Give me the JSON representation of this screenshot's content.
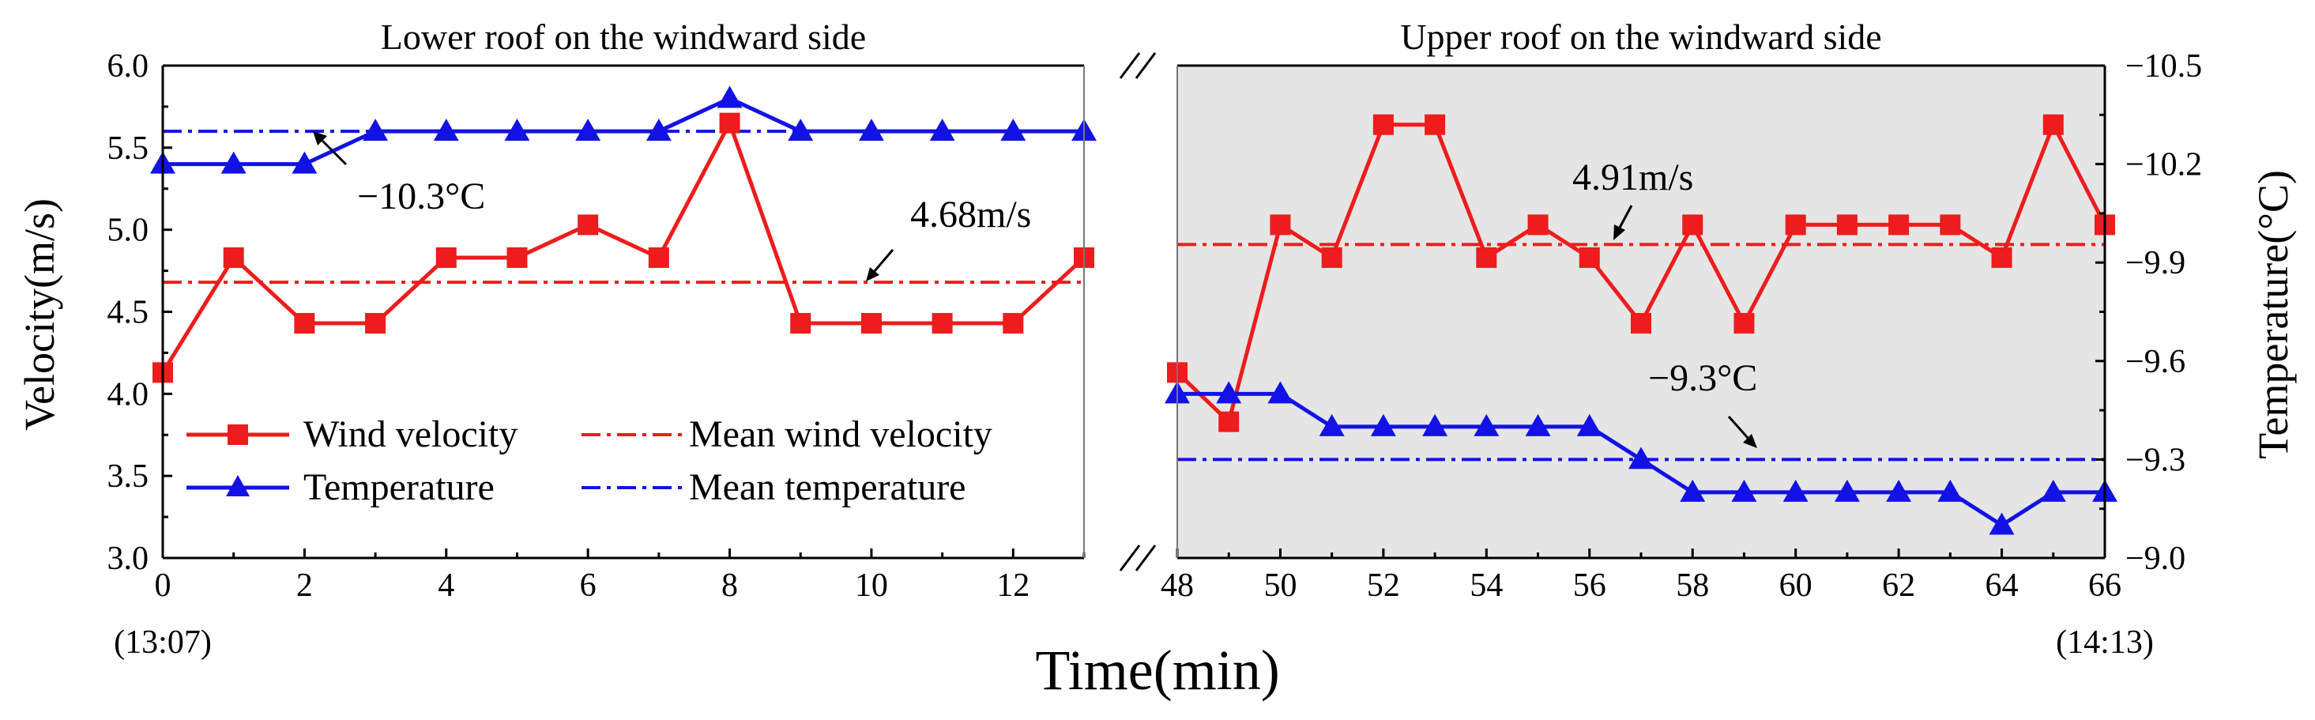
{
  "chart_data": {
    "type": "line",
    "layout": "broken-x-axis, two panels, dual y-axis",
    "xlabel": "Time(min)",
    "ylabel_left": "Velocity(m/s)",
    "ylabel_right": "Temperature(°C)",
    "ylim_left": [
      3.0,
      6.0
    ],
    "yticks_left": [
      "3.0",
      "3.5",
      "4.0",
      "4.5",
      "5.0",
      "5.5",
      "6.0"
    ],
    "ylim_right": [
      -9.0,
      -10.5
    ],
    "yticks_right": [
      "-9.0",
      "-9.3",
      "-9.6",
      "-9.9",
      "-10.2",
      "-10.5"
    ],
    "panels": [
      {
        "title": "Lower roof on the windward side",
        "xlim": [
          0,
          13
        ],
        "xticks": [
          "0",
          "2",
          "4",
          "6",
          "8",
          "10",
          "12"
        ],
        "start_time": "(13:07)",
        "background": "#ffffff",
        "x": [
          0,
          1,
          2,
          3,
          4,
          5,
          6,
          7,
          8,
          9,
          10,
          11,
          12,
          13
        ],
        "wind_velocity": [
          4.13,
          4.83,
          4.43,
          4.43,
          4.83,
          4.83,
          5.03,
          4.83,
          5.65,
          4.43,
          4.43,
          4.43,
          4.43,
          4.83
        ],
        "temperature": [
          -10.2,
          -10.2,
          -10.2,
          -10.3,
          -10.3,
          -10.3,
          -10.3,
          -10.3,
          -10.4,
          -10.3,
          -10.3,
          -10.3,
          -10.3,
          -10.3
        ],
        "mean_wind_velocity": 4.68,
        "mean_temperature": -10.3,
        "mean_velocity_label": "4.68m/s",
        "mean_temperature_label": "−10.3°C"
      },
      {
        "title": "Upper roof on the windward side",
        "xlim": [
          48,
          66
        ],
        "xticks": [
          "48",
          "50",
          "52",
          "54",
          "56",
          "58",
          "60",
          "62",
          "64",
          "66"
        ],
        "end_time": "(14:13)",
        "background": "#e5e5e5",
        "x": [
          48,
          49,
          50,
          51,
          52,
          53,
          54,
          55,
          56,
          57,
          58,
          59,
          60,
          61,
          62,
          63,
          64,
          65,
          66
        ],
        "wind_velocity": [
          4.13,
          3.83,
          5.03,
          4.83,
          5.64,
          5.64,
          4.83,
          5.03,
          4.83,
          4.43,
          5.03,
          4.43,
          5.03,
          5.03,
          5.03,
          5.03,
          4.83,
          5.64,
          5.03
        ],
        "temperature": [
          -9.5,
          -9.5,
          -9.5,
          -9.4,
          -9.4,
          -9.4,
          -9.4,
          -9.4,
          -9.4,
          -9.3,
          -9.2,
          -9.2,
          -9.2,
          -9.2,
          -9.2,
          -9.2,
          -9.1,
          -9.2,
          -9.2
        ],
        "mean_wind_velocity": 4.91,
        "mean_temperature": -9.3,
        "mean_velocity_label": "4.91m/s",
        "mean_temperature_label": "−9.3°C"
      }
    ],
    "series": [
      {
        "name": "Wind velocity",
        "axis": "left",
        "marker": "square",
        "style": "solid"
      },
      {
        "name": "Temperature",
        "axis": "right",
        "marker": "triangle",
        "style": "solid"
      },
      {
        "name": "Mean wind velocity",
        "axis": "left",
        "style": "dash-dot"
      },
      {
        "name": "Mean temperature",
        "axis": "right",
        "style": "dash-dot"
      }
    ],
    "legend": {
      "placement": "lower-left of left panel",
      "entries": [
        "Wind velocity",
        "Mean wind velocity",
        "Temperature",
        "Mean temperature"
      ]
    },
    "colors": {
      "wind": "#ee1c1c",
      "temperature": "#1212e6",
      "axis": "#000000"
    }
  }
}
